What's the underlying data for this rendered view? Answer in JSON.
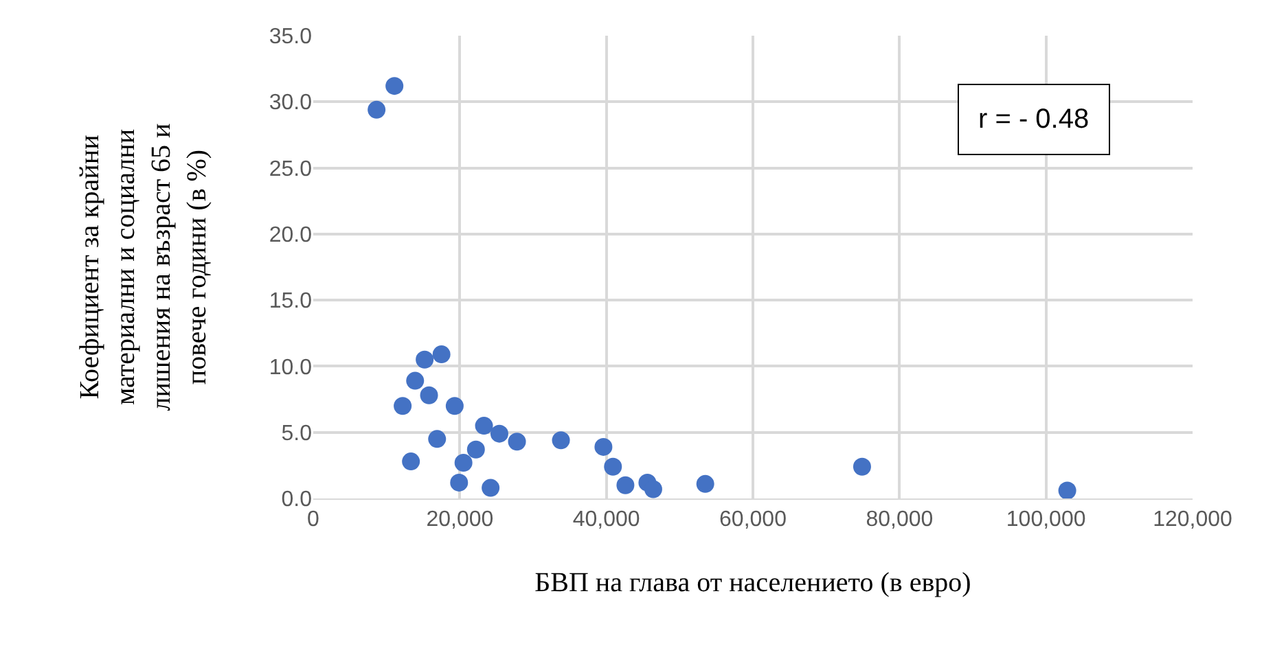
{
  "chart_data": {
    "type": "scatter",
    "xlabel": "БВП на глава от населението (в евро)",
    "ylabel": "Коефициент за крайни материални и социални лишения на възраст 65 и повече години (в %)",
    "annotations": [
      "r = - 0.48"
    ],
    "x": [
      8640,
      11080,
      12200,
      13330,
      13900,
      15200,
      15800,
      16900,
      17500,
      19300,
      19900,
      20500,
      22200,
      23300,
      24200,
      25400,
      27800,
      33800,
      39600,
      40900,
      42600,
      45600,
      46400,
      53500,
      74900,
      102900
    ],
    "series": [
      {
        "color": "#4472c4",
        "values": [
          29.4,
          31.2,
          7.0,
          2.8,
          8.9,
          10.5,
          7.8,
          4.5,
          10.9,
          7.0,
          1.2,
          2.7,
          3.7,
          5.5,
          0.8,
          4.9,
          4.3,
          4.4,
          3.9,
          2.4,
          1.0,
          1.2,
          0.7,
          1.1,
          2.4,
          0.6
        ]
      }
    ],
    "xlim": [
      0,
      120000
    ],
    "xticks": [
      0,
      {
        "value": 20000,
        "label": "20,000"
      },
      {
        "value": 40000,
        "label": "40,000"
      },
      {
        "value": 60000,
        "label": "60,000"
      },
      {
        "value": 80000,
        "label": "80,000"
      },
      {
        "value": 100000,
        "label": "100,000"
      },
      {
        "value": 120000,
        "label": "120,000"
      }
    ],
    "ylim": [
      0,
      35
    ],
    "yticks": [
      {
        "value": 0,
        "label": "0.0"
      },
      {
        "value": 5,
        "label": "5.0"
      },
      {
        "value": 10,
        "label": "10.0"
      },
      {
        "value": 15,
        "label": "15.0"
      },
      {
        "value": 20,
        "label": "20.0"
      },
      {
        "value": 25,
        "label": "25.0"
      },
      {
        "value": 30,
        "label": "30.0"
      },
      {
        "value": 35,
        "label": "35.0"
      }
    ],
    "grid": true,
    "marker": "circle"
  }
}
